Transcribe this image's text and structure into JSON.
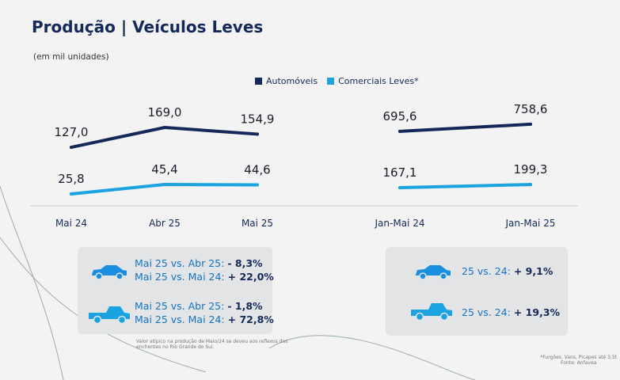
{
  "title": "Produção | Veículos Leves",
  "subtitle": "(em mil unidades)",
  "colors": {
    "automoveis": "#14295a",
    "comerciais": "#1aa3e0"
  },
  "chart_data": [
    {
      "type": "line",
      "categories": [
        "Mai 24",
        "Abr 25",
        "Mai 25"
      ],
      "series": [
        {
          "name": "Automóveis",
          "values": [
            127.0,
            169.0,
            154.9
          ],
          "labels": [
            "127,0",
            "169,0",
            "154,9"
          ]
        },
        {
          "name": "Comerciais Leves*",
          "values": [
            25.8,
            45.4,
            44.6
          ],
          "labels": [
            "25,8",
            "45,4",
            "44,6"
          ]
        }
      ]
    },
    {
      "type": "line",
      "categories": [
        "Jan-Mai 24",
        "Jan-Mai 25"
      ],
      "series": [
        {
          "name": "Automóveis",
          "values": [
            695.6,
            758.6
          ],
          "labels": [
            "695,6",
            "758,6"
          ]
        },
        {
          "name": "Comerciais Leves*",
          "values": [
            167.1,
            199.3
          ],
          "labels": [
            "167,1",
            "199,3"
          ]
        }
      ]
    }
  ],
  "legend": [
    "Automóveis",
    "Comerciais Leves*"
  ],
  "left_box": {
    "car": [
      {
        "label": "Mai 25 vs. Abr 25:",
        "value": "- 8,3%"
      },
      {
        "label": "Mai 25 vs. Mai 24:",
        "value": "+ 22,0%"
      }
    ],
    "truck": [
      {
        "label": "Mai 25 vs. Abr 25:",
        "value": "- 1,8%"
      },
      {
        "label": "Mai 25 vs. Mai 24:",
        "value": "+ 72,8%"
      }
    ],
    "note": "Valor atípico na produção de Maio/24 se deveu aos reflexos das enchentes no Rio Grande do Sul."
  },
  "right_box": {
    "car": {
      "label": "25 vs. 24:",
      "value": "+ 9,1%"
    },
    "truck": {
      "label": "25 vs. 24:",
      "value": "+ 19,3%"
    }
  },
  "footnote": "*Furgões, Vans, Picapes até 3,5t",
  "source": "Fonte: Anfavea"
}
